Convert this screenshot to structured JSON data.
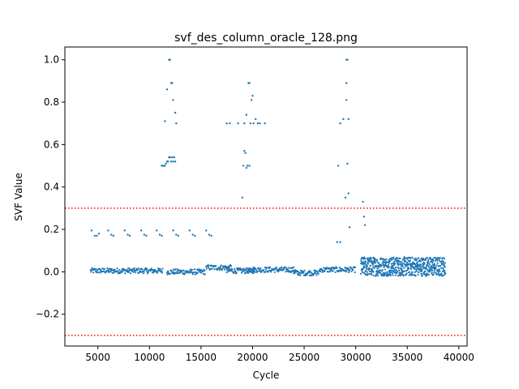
{
  "chart_data": {
    "type": "scatter",
    "title": "svf_des_column_oracle_128.png",
    "xlabel": "Cycle",
    "ylabel": "SVF Value",
    "xlim": [
      1800,
      40800
    ],
    "ylim": [
      -0.35,
      1.06
    ],
    "xticks": [
      5000,
      10000,
      15000,
      20000,
      25000,
      30000,
      35000,
      40000
    ],
    "xtick_labels": [
      "5000",
      "10000",
      "15000",
      "20000",
      "25000",
      "30000",
      "35000",
      "40000"
    ],
    "yticks": [
      -0.2,
      0.0,
      0.2,
      0.4,
      0.6,
      0.8,
      1.0
    ],
    "ytick_labels": [
      "−0.2",
      "0.0",
      "0.2",
      "0.4",
      "0.6",
      "0.8",
      "1.0"
    ],
    "grid": false,
    "marker_color": "#1f77b4",
    "threshold_lines": {
      "values": [
        0.3,
        -0.3
      ],
      "color": "#ff0000",
      "style": "dotted"
    },
    "series": [
      {
        "points": [
          [
            4400,
            0.195
          ],
          [
            4700,
            0.17
          ],
          [
            4900,
            0.17
          ],
          [
            5100,
            0.18
          ],
          [
            6000,
            0.195
          ],
          [
            6300,
            0.175
          ],
          [
            6500,
            0.17
          ],
          [
            7600,
            0.195
          ],
          [
            7900,
            0.175
          ],
          [
            8100,
            0.17
          ],
          [
            9200,
            0.195
          ],
          [
            9500,
            0.175
          ],
          [
            9700,
            0.17
          ],
          [
            10700,
            0.195
          ],
          [
            11000,
            0.175
          ],
          [
            11200,
            0.17
          ],
          [
            12300,
            0.195
          ],
          [
            12600,
            0.175
          ],
          [
            12800,
            0.17
          ],
          [
            13900,
            0.195
          ],
          [
            14200,
            0.175
          ],
          [
            14400,
            0.17
          ],
          [
            15500,
            0.195
          ],
          [
            15800,
            0.175
          ],
          [
            16000,
            0.17
          ],
          [
            11200,
            0.5
          ],
          [
            11300,
            0.5
          ],
          [
            11400,
            0.5
          ],
          [
            11500,
            0.5
          ],
          [
            11600,
            0.51
          ],
          [
            11700,
            0.52
          ],
          [
            11800,
            0.52
          ],
          [
            11900,
            0.54
          ],
          [
            12000,
            0.54
          ],
          [
            12100,
            0.52
          ],
          [
            12200,
            0.54
          ],
          [
            12300,
            0.52
          ],
          [
            12400,
            0.54
          ],
          [
            12500,
            0.52
          ],
          [
            11500,
            0.71
          ],
          [
            11700,
            0.86
          ],
          [
            11900,
            1.0
          ],
          [
            12000,
            1.0
          ],
          [
            12100,
            0.89
          ],
          [
            12200,
            0.89
          ],
          [
            12300,
            0.81
          ],
          [
            12500,
            0.75
          ],
          [
            12600,
            0.7
          ],
          [
            17500,
            0.7
          ],
          [
            17800,
            0.7
          ],
          [
            18600,
            0.7
          ],
          [
            19000,
            0.35
          ],
          [
            19200,
            0.57
          ],
          [
            19300,
            0.56
          ],
          [
            19100,
            0.5
          ],
          [
            19400,
            0.49
          ],
          [
            19700,
            0.5
          ],
          [
            19500,
            0.5
          ],
          [
            19200,
            0.7
          ],
          [
            19400,
            0.74
          ],
          [
            19600,
            0.89
          ],
          [
            19700,
            0.89
          ],
          [
            19800,
            0.7
          ],
          [
            19900,
            0.81
          ],
          [
            20000,
            0.83
          ],
          [
            20100,
            0.7
          ],
          [
            20300,
            0.72
          ],
          [
            20500,
            0.7
          ],
          [
            20700,
            0.7
          ],
          [
            21200,
            0.7
          ],
          [
            28200,
            0.14
          ],
          [
            28500,
            0.14
          ],
          [
            28300,
            0.5
          ],
          [
            28500,
            0.7
          ],
          [
            28800,
            0.72
          ],
          [
            29000,
            0.35
          ],
          [
            29100,
            0.89
          ],
          [
            29100,
            0.81
          ],
          [
            29200,
            1.0
          ],
          [
            29100,
            1.0
          ],
          [
            29300,
            0.72
          ],
          [
            29200,
            0.51
          ],
          [
            29300,
            0.37
          ],
          [
            29400,
            0.21
          ],
          [
            30700,
            0.33
          ],
          [
            30800,
            0.26
          ],
          [
            30900,
            0.22
          ]
        ],
        "segments": [
          {
            "x0": 4300,
            "x1": 11300,
            "y": 0.005
          },
          {
            "x0": 11700,
            "x1": 15400,
            "y": 0.0
          },
          {
            "x0": 15500,
            "x1": 18000,
            "y": 0.02
          },
          {
            "x0": 17500,
            "x1": 20200,
            "y": 0.005
          },
          {
            "x0": 19400,
            "x1": 24200,
            "y": 0.01
          },
          {
            "x0": 24000,
            "x1": 26500,
            "y": -0.005
          },
          {
            "x0": 26500,
            "x1": 30000,
            "y": 0.01
          }
        ],
        "noise_band": {
          "x0": 30500,
          "x1": 38700,
          "ymin": -0.02,
          "ymax": 0.07
        }
      }
    ]
  }
}
